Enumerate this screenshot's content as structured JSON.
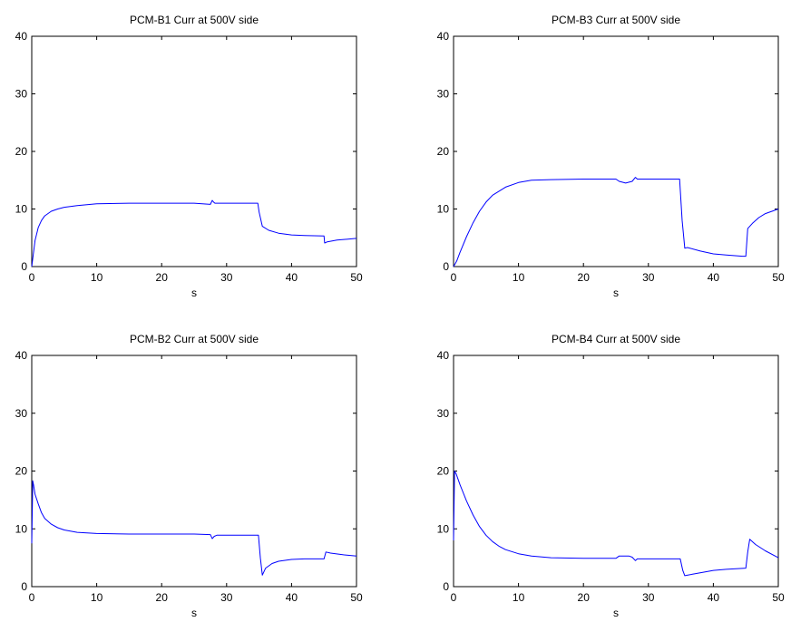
{
  "chart_data": [
    {
      "type": "line",
      "title": "PCM-B1 Curr at 500V side",
      "xlabel": "s",
      "ylabel": "",
      "xlim": [
        0,
        50
      ],
      "ylim": [
        0,
        40
      ],
      "xticks": [
        "0",
        "10",
        "20",
        "30",
        "40",
        "50"
      ],
      "yticks": [
        "0",
        "10",
        "20",
        "30",
        "40"
      ],
      "grid": false,
      "line_color": "#0000ff",
      "series": [
        {
          "x": [
            0,
            0.5,
            1,
            1.5,
            2,
            3,
            4,
            5,
            7,
            10,
            15,
            20,
            25,
            27.5,
            27.8,
            28,
            28.2,
            28.5,
            30,
            34.8,
            35,
            35.5,
            36.5,
            38,
            40,
            42,
            45,
            45.1,
            45.5,
            47,
            50
          ],
          "y": [
            0,
            4.5,
            6.8,
            8,
            8.8,
            9.6,
            10,
            10.3,
            10.6,
            10.9,
            11,
            11,
            11,
            10.8,
            11.5,
            11.2,
            11,
            11,
            11,
            11,
            9.5,
            7,
            6.3,
            5.8,
            5.5,
            5.4,
            5.3,
            4.1,
            4.3,
            4.6,
            4.9
          ]
        }
      ]
    },
    {
      "type": "line",
      "title": "PCM-B3 Curr at 500V side",
      "xlabel": "s",
      "ylabel": "",
      "xlim": [
        0,
        50
      ],
      "ylim": [
        0,
        40
      ],
      "xticks": [
        "0",
        "10",
        "20",
        "30",
        "40",
        "50"
      ],
      "yticks": [
        "0",
        "10",
        "20",
        "30",
        "40"
      ],
      "grid": false,
      "line_color": "#0000ff",
      "series": [
        {
          "x": [
            0,
            0.5,
            1,
            2,
            3,
            4,
            5,
            6,
            8,
            10,
            12,
            15,
            20,
            25,
            25.5,
            26.5,
            27.5,
            28,
            28.3,
            29,
            30,
            34.8,
            35.2,
            35.6,
            36,
            38,
            40,
            42,
            44.5,
            45,
            45.3,
            46,
            47,
            48,
            50
          ],
          "y": [
            0,
            1,
            2.5,
            5.2,
            7.6,
            9.6,
            11.2,
            12.4,
            13.8,
            14.6,
            15,
            15.1,
            15.2,
            15.2,
            14.8,
            14.5,
            14.8,
            15.5,
            15.2,
            15.2,
            15.2,
            15.2,
            8,
            3.2,
            3.3,
            2.7,
            2.2,
            2,
            1.8,
            1.8,
            6.6,
            7.5,
            8.5,
            9.2,
            10
          ]
        }
      ]
    },
    {
      "type": "line",
      "title": "PCM-B2 Curr at 500V side",
      "xlabel": "s",
      "ylabel": "",
      "xlim": [
        0,
        50
      ],
      "ylim": [
        0,
        40
      ],
      "xticks": [
        "0",
        "10",
        "20",
        "30",
        "40",
        "50"
      ],
      "yticks": [
        "0",
        "10",
        "20",
        "30",
        "40"
      ],
      "grid": false,
      "line_color": "#0000ff",
      "series": [
        {
          "x": [
            0,
            0.15,
            0.3,
            0.5,
            1,
            1.5,
            2,
            3,
            4,
            5,
            7,
            10,
            15,
            20,
            25,
            27.5,
            27.8,
            28.1,
            28.5,
            30,
            34.9,
            35.2,
            35.5,
            36,
            37,
            38,
            40,
            42,
            45,
            45.3,
            46,
            48,
            50
          ],
          "y": [
            7.5,
            18.3,
            17.5,
            16,
            14.3,
            12.8,
            11.8,
            10.8,
            10.2,
            9.8,
            9.4,
            9.2,
            9.1,
            9.1,
            9.1,
            9,
            8.3,
            8.7,
            8.9,
            8.9,
            8.9,
            5,
            2,
            3.2,
            4,
            4.4,
            4.7,
            4.8,
            4.8,
            6,
            5.8,
            5.5,
            5.3
          ]
        }
      ]
    },
    {
      "type": "line",
      "title": "PCM-B4 Curr at 500V side",
      "xlabel": "s",
      "ylabel": "",
      "xlim": [
        0,
        50
      ],
      "ylim": [
        0,
        40
      ],
      "xticks": [
        "0",
        "10",
        "20",
        "30",
        "40",
        "50"
      ],
      "yticks": [
        "0",
        "10",
        "20",
        "30",
        "40"
      ],
      "grid": false,
      "line_color": "#0000ff",
      "series": [
        {
          "x": [
            0,
            0.15,
            0.4,
            1,
            2,
            3,
            4,
            5,
            6,
            7,
            8,
            10,
            12,
            15,
            20,
            25,
            25.5,
            27,
            27.5,
            28,
            28.3,
            30,
            34.9,
            35.3,
            35.6,
            37,
            40,
            42,
            45,
            45.3,
            45.6,
            46.5,
            48,
            50
          ],
          "y": [
            8,
            20,
            19.5,
            17.6,
            14.8,
            12.4,
            10.4,
            8.9,
            7.8,
            7,
            6.4,
            5.7,
            5.3,
            5,
            4.9,
            4.9,
            5.3,
            5.3,
            5.1,
            4.5,
            4.8,
            4.8,
            4.8,
            2.8,
            1.9,
            2.2,
            2.8,
            3,
            3.2,
            6,
            8.2,
            7.3,
            6.2,
            5
          ]
        }
      ]
    }
  ]
}
